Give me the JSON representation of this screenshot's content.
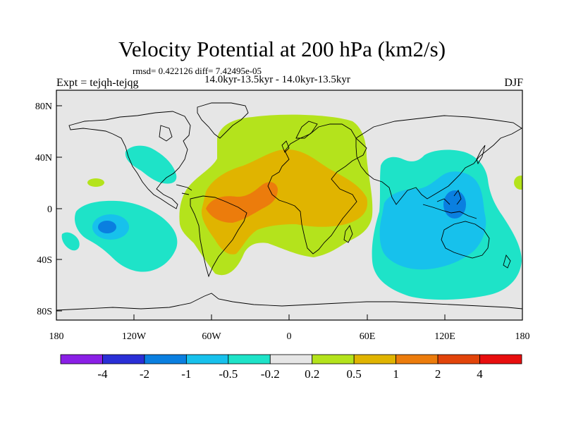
{
  "figure": {
    "title": "Velocity Potential at 200 hPa (km2/s)",
    "stats_line": "rmsd= 0.422126 diff= 7.42495e-05",
    "experiment": "Expt = tejqh-tejqg",
    "period": "14.0kyr-13.5kyr - 14.0kyr-13.5kyr",
    "season": "DJF"
  },
  "axes": {
    "lon_ticks": [
      "180",
      "120W",
      "60W",
      "0",
      "60E",
      "120E",
      "180"
    ],
    "lat_ticks": [
      "80N",
      "40N",
      "0",
      "40S",
      "80S"
    ]
  },
  "colorbar": {
    "labels": [
      "-4",
      "-2",
      "-1",
      "-0.5",
      "-0.2",
      "0.2",
      "0.5",
      "1",
      "2",
      "4"
    ],
    "colors": [
      "#8a1fe6",
      "#2a2fd6",
      "#0a7fe0",
      "#17c1ec",
      "#1ee3c8",
      "#e6e6e6",
      "#b4e31c",
      "#e0b400",
      "#ec7c0c",
      "#e2440a",
      "#e80e0e"
    ]
  },
  "chart_data": {
    "type": "heatmap",
    "title": "Velocity Potential at 200 hPa (km2/s)",
    "projection": "cylindrical equidistant",
    "x_range": [
      -180,
      180
    ],
    "y_range": [
      -90,
      90
    ],
    "levels": [
      -4,
      -2,
      -1,
      -0.5,
      -0.2,
      0.2,
      0.5,
      1,
      2,
      4
    ],
    "features": [
      {
        "name": "positive-region-atlantic-africa",
        "value_class": "0.2 to 0.5",
        "lon_range": [
          -75,
          60
        ],
        "lat_range": [
          -40,
          75
        ]
      },
      {
        "name": "positive-core-south-america-atlantic",
        "value_class": "0.5 to 1",
        "lon_range": [
          -65,
          50
        ],
        "lat_range": [
          -35,
          35
        ]
      },
      {
        "name": "positive-max-south-america",
        "value_class": "1 to 2",
        "lon_range": [
          -55,
          -15
        ],
        "lat_range": [
          -5,
          15
        ]
      },
      {
        "name": "negative-region-indo-pacific",
        "value_class": "-0.5 to -0.2",
        "lon_range": [
          75,
          180
        ],
        "lat_range": [
          -70,
          45
        ]
      },
      {
        "name": "negative-core-maritime-continent",
        "value_class": "-1 to -0.5",
        "lon_range": [
          80,
          175
        ],
        "lat_range": [
          -45,
          40
        ]
      },
      {
        "name": "negative-min-philippines",
        "value_class": "-2 to -1",
        "lon_range": [
          125,
          140
        ],
        "lat_range": [
          -5,
          10
        ]
      },
      {
        "name": "negative-region-south-pacific",
        "value_class": "-1 to -0.2",
        "lon_range": [
          -175,
          -110
        ],
        "lat_range": [
          -50,
          -5
        ]
      },
      {
        "name": "negative-region-north-america",
        "value_class": "-0.5 to -0.2",
        "lon_range": [
          -135,
          -80
        ],
        "lat_range": [
          15,
          50
        ]
      }
    ]
  }
}
